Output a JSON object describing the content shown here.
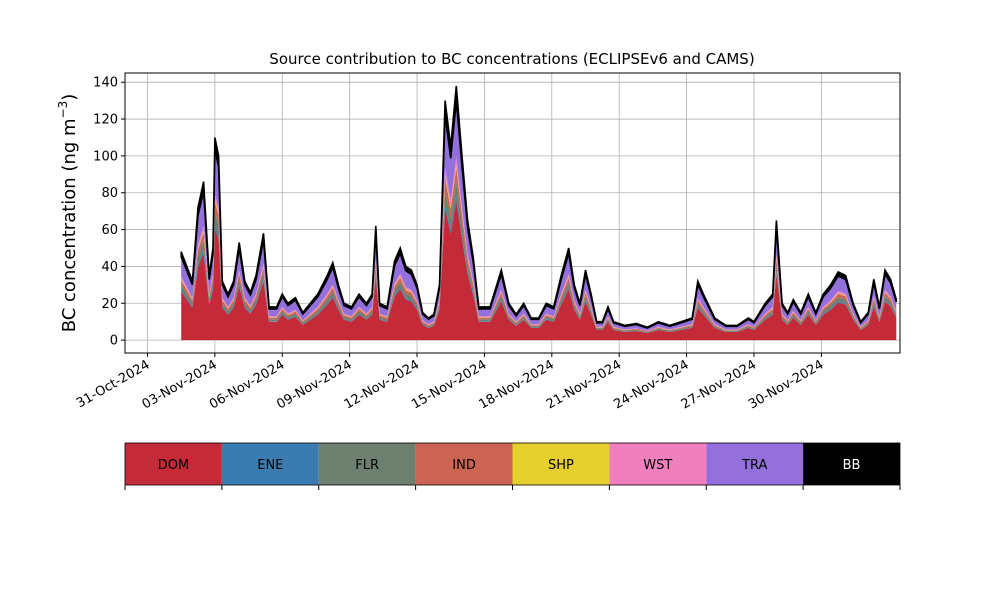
{
  "chart_data": {
    "type": "area",
    "stacked": true,
    "title": "Source contribution to BC concentrations (ECLIPSEv6 and CAMS)",
    "xlabel": "",
    "ylabel": "BC concentration (ng m",
    "ylabel_unit_exponent": "−3",
    "ylabel_close": ")",
    "ylim": [
      -7,
      145
    ],
    "yticks": [
      0,
      20,
      40,
      60,
      80,
      100,
      120,
      140
    ],
    "x_axis_type": "date",
    "xlim": [
      "2024-10-30T00:00",
      "2024-12-03T12:00"
    ],
    "xticks": [
      "31-Oct-2024",
      "03-Nov-2024",
      "06-Nov-2024",
      "09-Nov-2024",
      "12-Nov-2024",
      "15-Nov-2024",
      "18-Nov-2024",
      "21-Nov-2024",
      "24-Nov-2024",
      "27-Nov-2024",
      "30-Nov-2024"
    ],
    "xtick_dates": [
      "2024-10-31",
      "2024-11-03",
      "2024-11-06",
      "2024-11-09",
      "2024-11-12",
      "2024-11-15",
      "2024-11-18",
      "2024-11-21",
      "2024-11-24",
      "2024-11-27",
      "2024-11-30"
    ],
    "grid": true,
    "legend_position": "bottom (color bar)",
    "sources": [
      {
        "name": "DOM",
        "color": "#c52a38"
      },
      {
        "name": "ENE",
        "color": "#3a7bb0"
      },
      {
        "name": "FLR",
        "color": "#6d7f6f"
      },
      {
        "name": "IND",
        "color": "#cc6454"
      },
      {
        "name": "SHP",
        "color": "#e5cf2c"
      },
      {
        "name": "WST",
        "color": "#f07fbd"
      },
      {
        "name": "TRA",
        "color": "#9370db"
      },
      {
        "name": "BB",
        "color": "#000000"
      }
    ],
    "total_series": [
      [
        "2024-11-01T12:00",
        48
      ],
      [
        "2024-11-01T18:00",
        40
      ],
      [
        "2024-11-02T00:00",
        32
      ],
      [
        "2024-11-02T06:00",
        72
      ],
      [
        "2024-11-02T12:00",
        86
      ],
      [
        "2024-11-02T18:00",
        35
      ],
      [
        "2024-11-02T22:00",
        50
      ],
      [
        "2024-11-03T00:00",
        110
      ],
      [
        "2024-11-03T04:00",
        100
      ],
      [
        "2024-11-03T08:00",
        32
      ],
      [
        "2024-11-03T14:00",
        25
      ],
      [
        "2024-11-03T20:00",
        32
      ],
      [
        "2024-11-04T02:00",
        53
      ],
      [
        "2024-11-04T08:00",
        32
      ],
      [
        "2024-11-04T14:00",
        26
      ],
      [
        "2024-11-04T20:00",
        35
      ],
      [
        "2024-11-05T04:00",
        58
      ],
      [
        "2024-11-05T10:00",
        18
      ],
      [
        "2024-11-05T18:00",
        18
      ],
      [
        "2024-11-06T00:00",
        25
      ],
      [
        "2024-11-06T06:00",
        20
      ],
      [
        "2024-11-06T14:00",
        23
      ],
      [
        "2024-11-06T22:00",
        15
      ],
      [
        "2024-11-07T06:00",
        20
      ],
      [
        "2024-11-07T14:00",
        25
      ],
      [
        "2024-11-08T00:00",
        35
      ],
      [
        "2024-11-08T06:00",
        42
      ],
      [
        "2024-11-08T12:00",
        30
      ],
      [
        "2024-11-08T18:00",
        20
      ],
      [
        "2024-11-09T02:00",
        18
      ],
      [
        "2024-11-09T10:00",
        25
      ],
      [
        "2024-11-09T18:00",
        20
      ],
      [
        "2024-11-10T00:00",
        25
      ],
      [
        "2024-11-10T04:00",
        62
      ],
      [
        "2024-11-10T08:00",
        20
      ],
      [
        "2024-11-10T16:00",
        18
      ],
      [
        "2024-11-11T00:00",
        43
      ],
      [
        "2024-11-11T06:00",
        50
      ],
      [
        "2024-11-11T12:00",
        40
      ],
      [
        "2024-11-11T18:00",
        38
      ],
      [
        "2024-11-12T00:00",
        30
      ],
      [
        "2024-11-12T06:00",
        15
      ],
      [
        "2024-11-12T12:00",
        12
      ],
      [
        "2024-11-12T18:00",
        14
      ],
      [
        "2024-11-13T00:00",
        30
      ],
      [
        "2024-11-13T06:00",
        130
      ],
      [
        "2024-11-13T12:00",
        105
      ],
      [
        "2024-11-13T18:00",
        138
      ],
      [
        "2024-11-14T00:00",
        100
      ],
      [
        "2024-11-14T06:00",
        65
      ],
      [
        "2024-11-14T12:00",
        45
      ],
      [
        "2024-11-14T18:00",
        18
      ],
      [
        "2024-11-15T06:00",
        18
      ],
      [
        "2024-11-15T18:00",
        38
      ],
      [
        "2024-11-16T02:00",
        20
      ],
      [
        "2024-11-16T10:00",
        14
      ],
      [
        "2024-11-16T18:00",
        20
      ],
      [
        "2024-11-17T02:00",
        12
      ],
      [
        "2024-11-17T10:00",
        12
      ],
      [
        "2024-11-17T18:00",
        20
      ],
      [
        "2024-11-18T02:00",
        18
      ],
      [
        "2024-11-18T10:00",
        35
      ],
      [
        "2024-11-18T18:00",
        50
      ],
      [
        "2024-11-19T00:00",
        30
      ],
      [
        "2024-11-19T06:00",
        20
      ],
      [
        "2024-11-19T12:00",
        38
      ],
      [
        "2024-11-19T18:00",
        25
      ],
      [
        "2024-11-20T00:00",
        10
      ],
      [
        "2024-11-20T06:00",
        10
      ],
      [
        "2024-11-20T12:00",
        18
      ],
      [
        "2024-11-20T18:00",
        10
      ],
      [
        "2024-11-21T06:00",
        8
      ],
      [
        "2024-11-21T18:00",
        9
      ],
      [
        "2024-11-22T06:00",
        7
      ],
      [
        "2024-11-22T18:00",
        10
      ],
      [
        "2024-11-23T06:00",
        8
      ],
      [
        "2024-11-23T18:00",
        10
      ],
      [
        "2024-11-24T06:00",
        12
      ],
      [
        "2024-11-24T12:00",
        32
      ],
      [
        "2024-11-24T18:00",
        25
      ],
      [
        "2024-11-25T06:00",
        12
      ],
      [
        "2024-11-25T18:00",
        8
      ],
      [
        "2024-11-26T06:00",
        8
      ],
      [
        "2024-11-26T18:00",
        12
      ],
      [
        "2024-11-27T00:00",
        10
      ],
      [
        "2024-11-27T12:00",
        20
      ],
      [
        "2024-11-27T20:00",
        25
      ],
      [
        "2024-11-28T00:00",
        65
      ],
      [
        "2024-11-28T06:00",
        20
      ],
      [
        "2024-11-28T12:00",
        15
      ],
      [
        "2024-11-28T18:00",
        22
      ],
      [
        "2024-11-29T02:00",
        15
      ],
      [
        "2024-11-29T10:00",
        25
      ],
      [
        "2024-11-29T18:00",
        15
      ],
      [
        "2024-11-30T02:00",
        25
      ],
      [
        "2024-11-30T10:00",
        30
      ],
      [
        "2024-11-30T18:00",
        37
      ],
      [
        "2024-12-01T02:00",
        35
      ],
      [
        "2024-12-01T10:00",
        20
      ],
      [
        "2024-12-01T18:00",
        10
      ],
      [
        "2024-12-02T02:00",
        15
      ],
      [
        "2024-12-02T08:00",
        33
      ],
      [
        "2024-12-02T14:00",
        18
      ],
      [
        "2024-12-02T20:00",
        38
      ],
      [
        "2024-12-03T02:00",
        33
      ],
      [
        "2024-12-03T08:00",
        22
      ]
    ],
    "source_fractions": {
      "DOM": 0.55,
      "ENE": 0.02,
      "FLR": 0.06,
      "IND": 0.05,
      "SHP": 0.01,
      "WST": 0.03,
      "TRA": 0.22,
      "BB": 0.06
    }
  }
}
